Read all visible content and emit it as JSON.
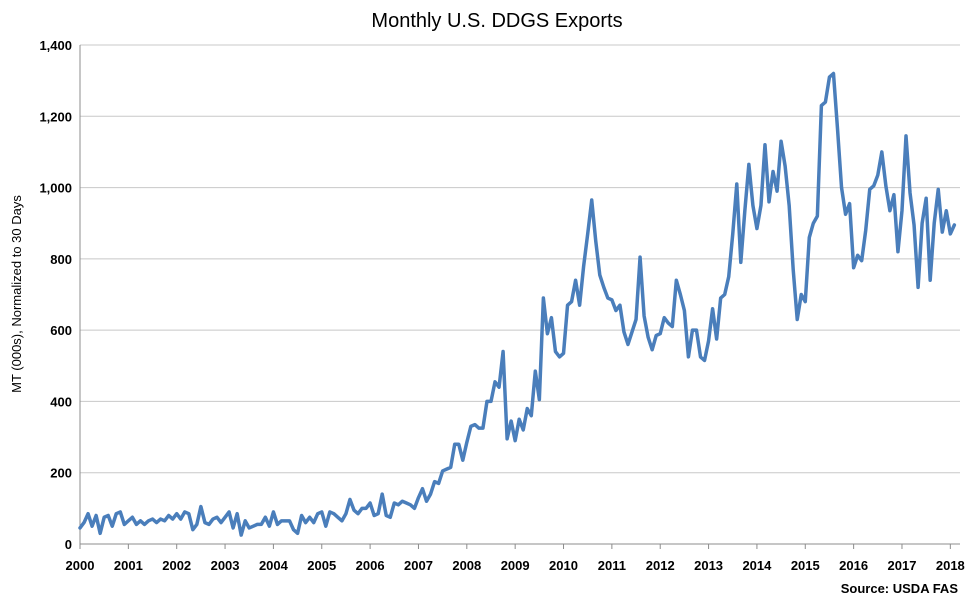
{
  "chart_data": {
    "type": "line",
    "title": "Monthly U.S. DDGS Exports",
    "xlabel": "",
    "ylabel": "MT (000s), Normalized to 30 Days",
    "source": "Source: USDA FAS",
    "ylim": [
      0,
      1400
    ],
    "xlim": [
      2000,
      2018.2
    ],
    "y_ticks": [
      "0",
      "200",
      "400",
      "600",
      "800",
      "1,000",
      "1,200",
      "1,400"
    ],
    "y_tick_values": [
      0,
      200,
      400,
      600,
      800,
      1000,
      1200,
      1400
    ],
    "x_ticks": [
      "2000",
      "2001",
      "2002",
      "2003",
      "2004",
      "2005",
      "2006",
      "2007",
      "2008",
      "2009",
      "2010",
      "2011",
      "2012",
      "2013",
      "2014",
      "2015",
      "2016",
      "2017",
      "2018"
    ],
    "x_tick_values": [
      2000,
      2001,
      2002,
      2003,
      2004,
      2005,
      2006,
      2007,
      2008,
      2009,
      2010,
      2011,
      2012,
      2013,
      2014,
      2015,
      2016,
      2017,
      2018
    ],
    "grid": true,
    "series": [
      {
        "color": "#4a7ebb",
        "start": "2000-01",
        "values": [
          45,
          60,
          85,
          50,
          80,
          30,
          75,
          80,
          50,
          85,
          90,
          55,
          65,
          75,
          55,
          65,
          55,
          65,
          70,
          60,
          70,
          65,
          80,
          70,
          85,
          70,
          90,
          85,
          40,
          55,
          105,
          60,
          55,
          70,
          75,
          60,
          75,
          90,
          45,
          85,
          25,
          65,
          45,
          50,
          55,
          55,
          75,
          50,
          90,
          55,
          65,
          65,
          65,
          40,
          30,
          80,
          60,
          75,
          60,
          85,
          90,
          50,
          90,
          85,
          75,
          65,
          85,
          125,
          95,
          85,
          100,
          100,
          115,
          80,
          85,
          140,
          80,
          75,
          115,
          110,
          120,
          115,
          110,
          100,
          130,
          155,
          120,
          140,
          175,
          170,
          205,
          210,
          215,
          280,
          280,
          235,
          285,
          330,
          335,
          325,
          325,
          400,
          400,
          455,
          440,
          540,
          295,
          345,
          290,
          350,
          320,
          380,
          360,
          485,
          405,
          690,
          590,
          635,
          540,
          525,
          535,
          670,
          680,
          740,
          670,
          780,
          870,
          965,
          850,
          755,
          720,
          690,
          685,
          655,
          670,
          595,
          560,
          595,
          630,
          805,
          640,
          580,
          545,
          585,
          590,
          635,
          620,
          610,
          740,
          700,
          655,
          525,
          600,
          600,
          525,
          515,
          570,
          660,
          575,
          690,
          700,
          750,
          870,
          1010,
          790,
          935,
          1065,
          950,
          885,
          950,
          1120,
          960,
          1045,
          990,
          1130,
          1060,
          950,
          770,
          630,
          700,
          680,
          860,
          900,
          920,
          1230,
          1240,
          1310,
          1320,
          1165,
          1000,
          925,
          955,
          775,
          810,
          795,
          880,
          995,
          1005,
          1035,
          1100,
          1005,
          935,
          980,
          820,
          935,
          1145,
          985,
          895,
          720,
          900,
          970,
          740,
          900,
          995,
          875,
          935,
          870,
          895
        ]
      }
    ]
  }
}
